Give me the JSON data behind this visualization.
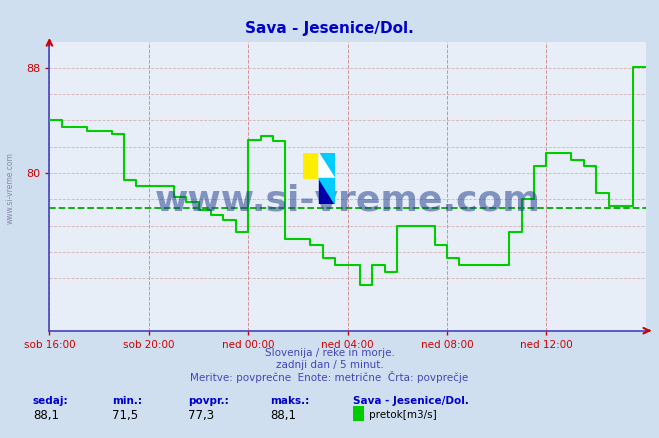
{
  "title": "Sava - Jesenice/Dol.",
  "title_color": "#0000cc",
  "background_color": "#d0dff0",
  "plot_bg_color": "#e8eef8",
  "line_color": "#00cc00",
  "avg_line_color": "#00aa00",
  "axis_color": "#4444bb",
  "tick_color": "#cc0000",
  "x_tick_labels": [
    "sob 16:00",
    "sob 20:00",
    "ned 00:00",
    "ned 04:00",
    "ned 08:00",
    "ned 12:00"
  ],
  "x_tick_positions": [
    0,
    48,
    96,
    144,
    192,
    240
  ],
  "y_ticks": [
    80,
    88
  ],
  "y_grid_lines": [
    72,
    74,
    76,
    78,
    80,
    82,
    84,
    86,
    88
  ],
  "ylim_min": 68,
  "ylim_max": 90,
  "xlim_min": 0,
  "xlim_max": 288,
  "avg_value": 77.3,
  "sedaj": 88.1,
  "min_val": 71.5,
  "povpr": 77.3,
  "maks": 88.1,
  "subtitle1": "Slovenija / reke in morje.",
  "subtitle2": "zadnji dan / 5 minut.",
  "subtitle3": "Meritve: povprečne  Enote: metrične  Črta: povprečje",
  "footer_label1": "sedaj:",
  "footer_label2": "min.:",
  "footer_label3": "povpr.:",
  "footer_label4": "maks.:",
  "footer_label5": "Sava - Jesenice/Dol.",
  "footer_legend": "pretok[m3/s]",
  "watermark": "www.si-vreme.com",
  "data_x": [
    0,
    0,
    6,
    6,
    12,
    12,
    18,
    18,
    24,
    24,
    30,
    30,
    36,
    36,
    42,
    42,
    48,
    48,
    54,
    54,
    60,
    60,
    66,
    66,
    72,
    72,
    78,
    78,
    84,
    84,
    90,
    90,
    96,
    96,
    102,
    102,
    108,
    108,
    114,
    114,
    120,
    120,
    126,
    126,
    132,
    132,
    138,
    138,
    144,
    144,
    150,
    150,
    156,
    156,
    162,
    162,
    168,
    168,
    174,
    174,
    180,
    180,
    186,
    186,
    192,
    192,
    198,
    198,
    204,
    204,
    210,
    210,
    216,
    216,
    222,
    222,
    228,
    228,
    234,
    234,
    240,
    240,
    246,
    246,
    252,
    252,
    258,
    258,
    264,
    264,
    270,
    270,
    276,
    276,
    282,
    282,
    288
  ],
  "data_y": [
    84.0,
    84.0,
    84.0,
    83.5,
    83.5,
    83.5,
    83.5,
    83.2,
    83.2,
    83.2,
    83.2,
    83.0,
    83.0,
    79.5,
    79.5,
    79.0,
    79.0,
    79.0,
    79.0,
    79.0,
    79.0,
    78.2,
    78.2,
    77.8,
    77.8,
    77.2,
    77.2,
    76.8,
    76.8,
    76.4,
    76.4,
    75.5,
    75.5,
    82.5,
    82.5,
    82.8,
    82.8,
    82.4,
    82.4,
    75.0,
    75.0,
    75.0,
    75.0,
    74.5,
    74.5,
    73.5,
    73.5,
    73.0,
    73.0,
    73.0,
    73.0,
    71.5,
    71.5,
    73.0,
    73.0,
    72.5,
    72.5,
    76.0,
    76.0,
    76.0,
    76.0,
    76.0,
    76.0,
    74.5,
    74.5,
    73.5,
    73.5,
    73.0,
    73.0,
    73.0,
    73.0,
    73.0,
    73.0,
    73.0,
    73.0,
    75.5,
    75.5,
    78.0,
    78.0,
    80.5,
    80.5,
    81.5,
    81.5,
    81.5,
    81.5,
    81.0,
    81.0,
    80.5,
    80.5,
    78.5,
    78.5,
    77.5,
    77.5,
    77.5,
    77.5,
    88.1,
    88.1
  ]
}
